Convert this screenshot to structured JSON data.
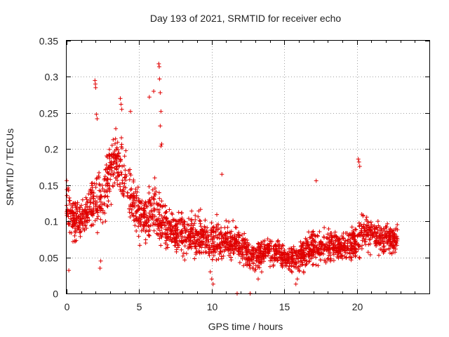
{
  "chart_data": {
    "type": "scatter",
    "title": "Day 193 of 2021, SRMTID for receiver echo",
    "xlabel": "GPS time / hours",
    "ylabel": "SRMTID / TECUs",
    "xlim": [
      0,
      25
    ],
    "ylim": [
      0,
      0.35
    ],
    "xticks": [
      0,
      5,
      10,
      15,
      20
    ],
    "xtick_labels": [
      "0",
      "5",
      "10",
      "15",
      "20"
    ],
    "yticks": [
      0,
      0.05,
      0.1,
      0.15,
      0.2,
      0.25,
      0.3,
      0.35
    ],
    "ytick_labels": [
      "0",
      "0.05",
      "0.1",
      "0.15",
      "0.2",
      "0.25",
      "0.3",
      "0.35"
    ],
    "grid": true,
    "marker": "plus",
    "color": "#e00000",
    "series": [
      {
        "name": "SRMTID",
        "profile": {
          "x": [
            0.0,
            0.5,
            1.0,
            1.5,
            2.0,
            2.5,
            3.0,
            3.5,
            4.0,
            4.5,
            5.0,
            5.5,
            6.0,
            6.5,
            7.0,
            7.5,
            8.0,
            9.0,
            10.0,
            11.0,
            12.0,
            13.0,
            14.0,
            15.0,
            16.0,
            17.0,
            18.0,
            19.0,
            20.0,
            20.5,
            21.0,
            22.0,
            22.8
          ],
          "center": [
            0.13,
            0.1,
            0.1,
            0.115,
            0.13,
            0.13,
            0.17,
            0.19,
            0.16,
            0.13,
            0.11,
            0.1,
            0.12,
            0.1,
            0.09,
            0.085,
            0.085,
            0.08,
            0.075,
            0.075,
            0.065,
            0.05,
            0.06,
            0.05,
            0.05,
            0.065,
            0.065,
            0.065,
            0.07,
            0.09,
            0.08,
            0.075,
            0.075
          ],
          "spread": [
            0.04,
            0.035,
            0.03,
            0.04,
            0.05,
            0.05,
            0.05,
            0.05,
            0.05,
            0.05,
            0.045,
            0.04,
            0.05,
            0.045,
            0.04,
            0.035,
            0.035,
            0.035,
            0.035,
            0.03,
            0.03,
            0.025,
            0.025,
            0.02,
            0.025,
            0.03,
            0.03,
            0.025,
            0.03,
            0.035,
            0.03,
            0.03,
            0.025
          ]
        },
        "count": 2300,
        "outliers": [
          {
            "x": 1.95,
            "y": 0.295
          },
          {
            "x": 1.98,
            "y": 0.29
          },
          {
            "x": 2.0,
            "y": 0.285
          },
          {
            "x": 2.05,
            "y": 0.248
          },
          {
            "x": 2.1,
            "y": 0.242
          },
          {
            "x": 3.7,
            "y": 0.27
          },
          {
            "x": 3.75,
            "y": 0.262
          },
          {
            "x": 3.8,
            "y": 0.255
          },
          {
            "x": 4.4,
            "y": 0.252
          },
          {
            "x": 5.7,
            "y": 0.272
          },
          {
            "x": 6.0,
            "y": 0.28
          },
          {
            "x": 6.35,
            "y": 0.318
          },
          {
            "x": 6.38,
            "y": 0.314
          },
          {
            "x": 6.4,
            "y": 0.297
          },
          {
            "x": 6.45,
            "y": 0.278
          },
          {
            "x": 6.5,
            "y": 0.252
          },
          {
            "x": 6.45,
            "y": 0.232
          },
          {
            "x": 6.55,
            "y": 0.207
          },
          {
            "x": 6.5,
            "y": 0.204
          },
          {
            "x": 10.7,
            "y": 0.165
          },
          {
            "x": 17.2,
            "y": 0.156
          },
          {
            "x": 20.1,
            "y": 0.186
          },
          {
            "x": 20.15,
            "y": 0.182
          },
          {
            "x": 20.2,
            "y": 0.176
          },
          {
            "x": 0.15,
            "y": 0.032
          },
          {
            "x": 2.3,
            "y": 0.035
          },
          {
            "x": 2.35,
            "y": 0.045
          },
          {
            "x": 10.0,
            "y": 0.02
          },
          {
            "x": 10.1,
            "y": 0.013
          },
          {
            "x": 9.9,
            "y": 0.03
          },
          {
            "x": 11.75,
            "y": 0.0
          },
          {
            "x": 12.65,
            "y": 0.0
          },
          {
            "x": 13.2,
            "y": 0.02
          },
          {
            "x": 15.8,
            "y": 0.013
          },
          {
            "x": 15.9,
            "y": 0.02
          }
        ]
      }
    ]
  }
}
